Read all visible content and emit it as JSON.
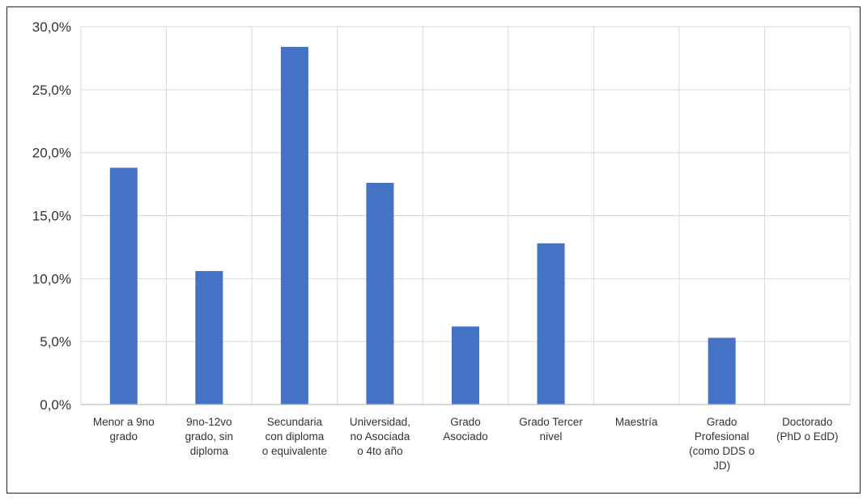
{
  "chart_data": {
    "type": "bar",
    "categories": [
      [
        "Menor a 9no",
        "grado"
      ],
      [
        "9no-12vo",
        "grado, sin",
        "diploma"
      ],
      [
        "Secundaria",
        "con diploma",
        "o equivalente"
      ],
      [
        "Universidad,",
        "no Asociada",
        "o 4to año"
      ],
      [
        "Grado",
        "Asociado"
      ],
      [
        "Grado Tercer",
        "nivel"
      ],
      [
        "Maestría"
      ],
      [
        "Grado",
        "Profesional",
        "(como DDS o",
        "JD)"
      ],
      [
        "Doctorado",
        "(PhD o EdD)"
      ]
    ],
    "values": [
      18.8,
      10.6,
      28.4,
      17.6,
      6.2,
      12.8,
      0.0,
      5.3,
      0.0
    ],
    "ylim": [
      0,
      30
    ],
    "yticks": [
      "0,0%",
      "5,0%",
      "10,0%",
      "15,0%",
      "20,0%",
      "25,0%",
      "30,0%"
    ],
    "grid": true,
    "legend": "none",
    "bar_color": "#4472C4",
    "grid_color": "#d9d9d9"
  }
}
